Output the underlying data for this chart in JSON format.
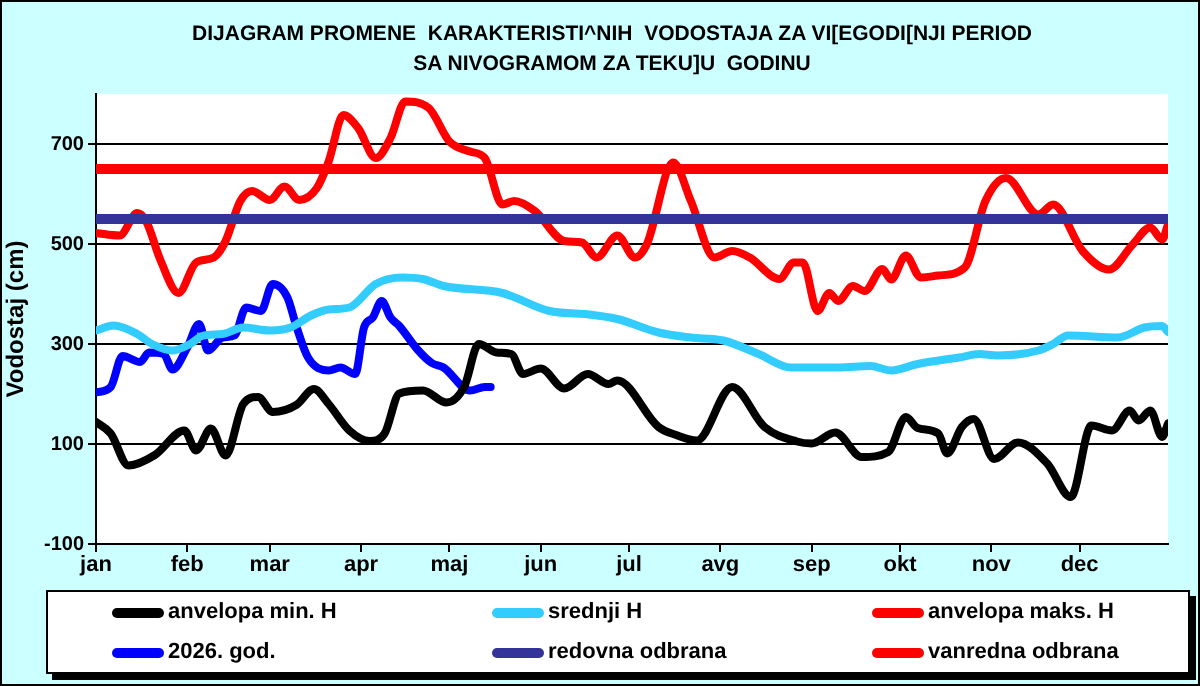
{
  "chart_data": {
    "type": "line",
    "title": "DIJAGRAM PROMENE  KARAKTERISTI^NIH  VODOSTAJA ZA VI[EGODI[NJI PERIOD  SA NIVOGRAMOM ZA TEKU]U  GODINU",
    "ylabel": "Vodostaj (cm)",
    "xlim": [
      "--01-01",
      "--12-31"
    ],
    "xticks": [
      {
        "value": "--01-01",
        "label": "jan"
      },
      {
        "value": "--02-01",
        "label": "feb"
      },
      {
        "value": "--03-01",
        "label": "mar"
      },
      {
        "value": "--04-01",
        "label": "apr"
      },
      {
        "value": "--05-01",
        "label": "maj"
      },
      {
        "value": "--06-01",
        "label": "jun"
      },
      {
        "value": "--07-01",
        "label": "jul"
      },
      {
        "value": "--08-01",
        "label": "avg"
      },
      {
        "value": "--09-01",
        "label": "sep"
      },
      {
        "value": "--10-01",
        "label": "okt"
      },
      {
        "value": "--11-01",
        "label": "nov"
      },
      {
        "value": "--12-01",
        "label": "dec"
      }
    ],
    "ylim": [
      -100,
      800
    ],
    "yticks": [
      -100,
      100,
      300,
      500,
      700
    ],
    "grid": "y",
    "legend": "bottom",
    "marker": "none",
    "line_style": "solid",
    "series": [
      {
        "name": "anvelopa min. H",
        "color": "#000000",
        "x": [
          "--01-01",
          "--01-06",
          "--01-12",
          "--01-21",
          "--01-31",
          "--02-04",
          "--02-09",
          "--02-14",
          "--02-20",
          "--02-25",
          "--03-02",
          "--03-10",
          "--03-16",
          "--03-21",
          "--03-28",
          "--04-04",
          "--04-09",
          "--04-14",
          "--04-22",
          "--04-30",
          "--05-06",
          "--05-11",
          "--05-17",
          "--05-22",
          "--05-26",
          "--06-01",
          "--06-09",
          "--06-17",
          "--06-24",
          "--06-27",
          "--07-11",
          "--07-17",
          "--07-24",
          "--08-05",
          "--08-16",
          "--08-27",
          "--09-01",
          "--09-09",
          "--09-18",
          "--09-27",
          "--10-03",
          "--10-07",
          "--10-14",
          "--10-17",
          "--10-22",
          "--10-26",
          "--11-02",
          "--11-10",
          "--11-20",
          "--11-28",
          "--12-05",
          "--12-12",
          "--12-18",
          "--12-21",
          "--12-25",
          "--12-29",
          "--12-31"
        ],
        "values": [
          144,
          121,
          57,
          78,
          127,
          87,
          131,
          77,
          180,
          194,
          164,
          178,
          210,
          180,
          127,
          106,
          121,
          201,
          207,
          183,
          214,
          300,
          283,
          280,
          240,
          251,
          211,
          240,
          220,
          227,
          134,
          118,
          107,
          214,
          134,
          105,
          101,
          123,
          74,
          84,
          154,
          132,
          121,
          81,
          134,
          150,
          70,
          103,
          61,
          -6,
          137,
          127,
          167,
          147,
          167,
          114,
          141
        ]
      },
      {
        "name": "srednji H",
        "color": "#33ccff",
        "x": [
          "--01-01",
          "--01-07",
          "--01-15",
          "--01-20",
          "--01-27",
          "--02-02",
          "--02-06",
          "--02-13",
          "--02-20",
          "--03-01",
          "--03-08",
          "--03-15",
          "--03-21",
          "--03-28",
          "--04-06",
          "--04-15",
          "--04-22",
          "--04-29",
          "--05-19",
          "--06-04",
          "--06-16",
          "--06-27",
          "--07-11",
          "--07-22",
          "--08-02",
          "--08-14",
          "--08-25",
          "--08-30",
          "--09-10",
          "--09-21",
          "--09-28",
          "--10-07",
          "--10-21",
          "--10-28",
          "--11-03",
          "--11-17",
          "--11-22",
          "--11-27",
          "--12-14",
          "--12-23",
          "--12-29",
          "--12-31"
        ],
        "values": [
          327,
          337,
          320,
          300,
          287,
          300,
          316,
          320,
          333,
          327,
          333,
          357,
          369,
          373,
          420,
          433,
          430,
          416,
          402,
          366,
          360,
          350,
          323,
          313,
          307,
          280,
          253,
          253,
          253,
          256,
          247,
          260,
          273,
          280,
          277,
          287,
          300,
          317,
          313,
          333,
          336,
          324
        ]
      },
      {
        "name": "anvelopa maks. H",
        "color": "#ff0000",
        "x": [
          "--01-01",
          "--01-09",
          "--01-15",
          "--01-18",
          "--01-23",
          "--01-29",
          "--02-04",
          "--02-10",
          "--02-14",
          "--02-19",
          "--02-23",
          "--03-01",
          "--03-06",
          "--03-11",
          "--03-17",
          "--03-21",
          "--03-26",
          "--03-31",
          "--04-06",
          "--04-11",
          "--04-16",
          "--04-24",
          "--05-01",
          "--05-08",
          "--05-13",
          "--05-19",
          "--05-23",
          "--05-30",
          "--06-09",
          "--06-15",
          "--06-20",
          "--06-27",
          "--07-03",
          "--07-07",
          "--07-16",
          "--07-22",
          "--07-30",
          "--08-05",
          "--08-11",
          "--08-21",
          "--08-26",
          "--08-29",
          "--09-03",
          "--09-07",
          "--09-10",
          "--09-15",
          "--09-19",
          "--09-25",
          "--09-28",
          "--10-03",
          "--10-08",
          "--10-14",
          "--10-23",
          "--10-30",
          "--11-06",
          "--11-17",
          "--11-22",
          "--12-02",
          "--12-11",
          "--12-19",
          "--12-25",
          "--12-29",
          "--12-31"
        ],
        "values": [
          522,
          517,
          562,
          546,
          466,
          402,
          463,
          473,
          506,
          586,
          606,
          588,
          615,
          588,
          612,
          665,
          758,
          732,
          672,
          712,
          785,
          772,
          705,
          685,
          672,
          579,
          586,
          566,
          506,
          503,
          473,
          517,
          473,
          499,
          663,
          586,
          473,
          486,
          473,
          430,
          463,
          463,
          366,
          402,
          386,
          416,
          406,
          450,
          429,
          477,
          433,
          437,
          453,
          586,
          632,
          559,
          579,
          486,
          449,
          499,
          533,
          509,
          539
        ]
      },
      {
        "name": "2026. god.",
        "color": "#0000ff",
        "x": [
          "--01-01",
          "--01-06",
          "--01-10",
          "--01-16",
          "--01-19",
          "--01-24",
          "--01-27",
          "--02-01",
          "--02-05",
          "--02-08",
          "--02-13",
          "--02-17",
          "--02-21",
          "--02-26",
          "--03-02",
          "--03-07",
          "--03-10",
          "--03-14",
          "--03-21",
          "--03-25",
          "--03-30",
          "--04-02",
          "--04-05",
          "--04-08",
          "--04-11",
          "--04-14",
          "--04-20",
          "--04-25",
          "--04-29",
          "--05-08",
          "--05-13",
          "--05-15"
        ],
        "values": [
          203,
          214,
          276,
          264,
          283,
          280,
          249,
          293,
          340,
          287,
          313,
          317,
          373,
          366,
          420,
          393,
          336,
          273,
          247,
          253,
          240,
          333,
          353,
          386,
          353,
          336,
          290,
          262,
          253,
          207,
          214,
          214
        ]
      }
    ],
    "ref_lines": [
      {
        "axis": "y",
        "value": 550,
        "label": "redovna odbrana",
        "color": "#333399"
      },
      {
        "axis": "y",
        "value": 650,
        "label": "vanredna odbrana",
        "color": "#ff0000"
      }
    ]
  }
}
